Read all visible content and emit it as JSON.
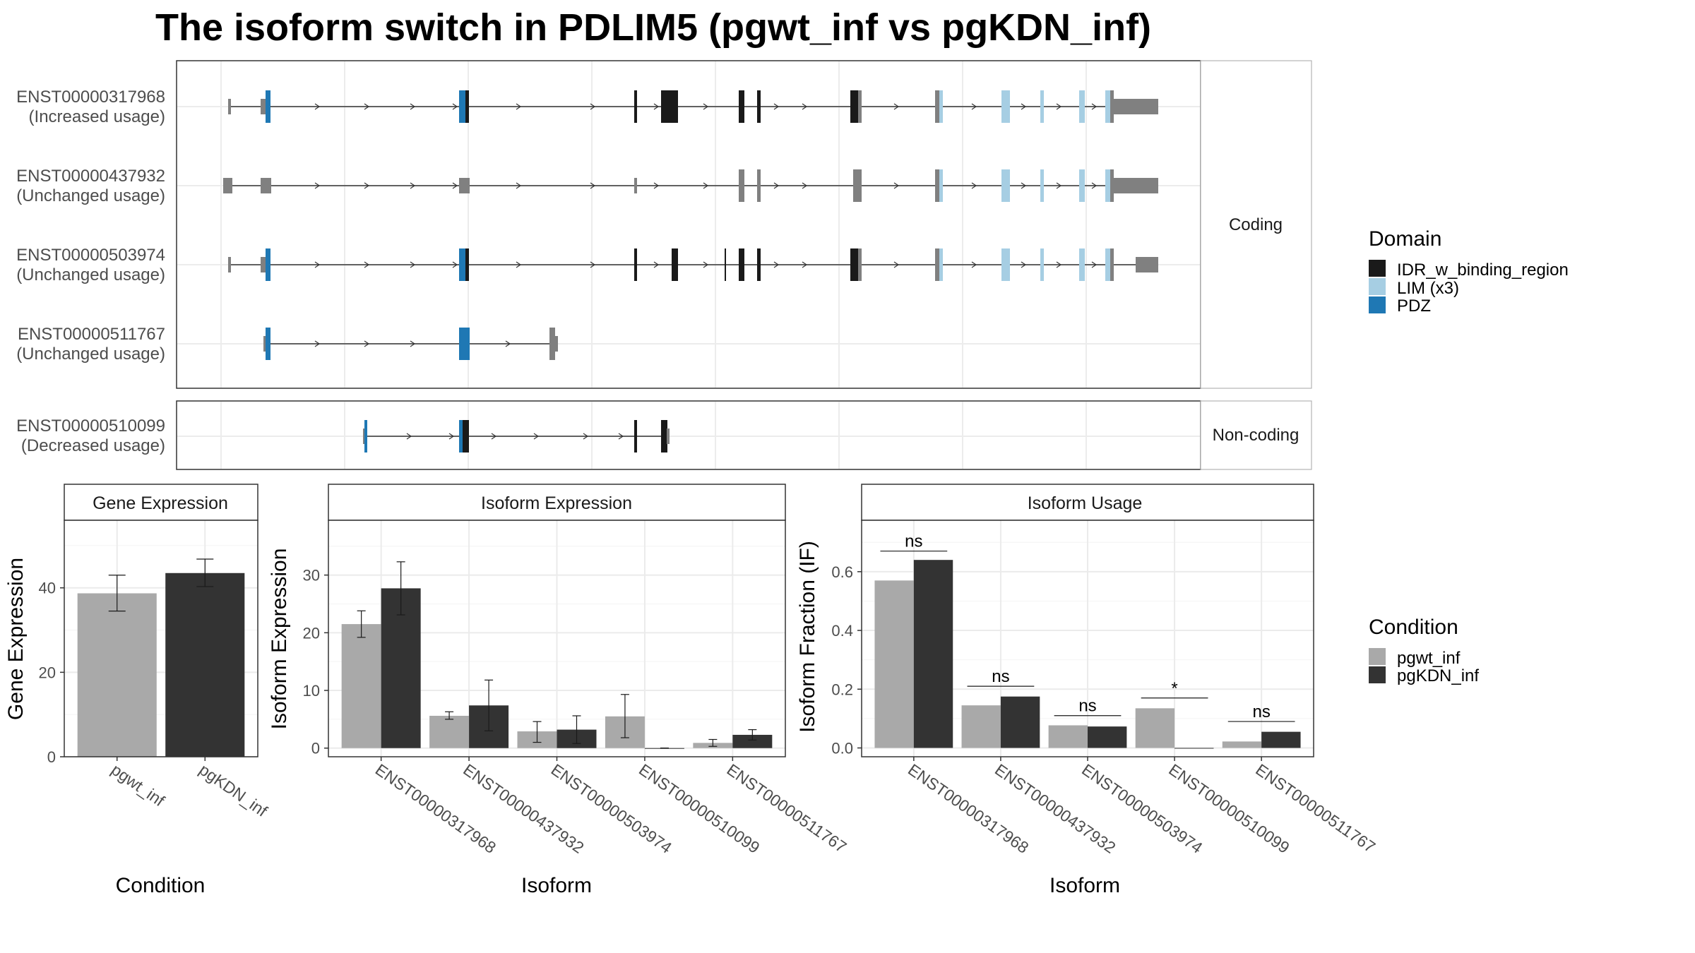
{
  "title": "The isoform switch in PDLIM5 (pgwt_inf vs pgKDN_inf)",
  "colors": {
    "IDR_w_binding_region": "#1a1a1a",
    "LIM (x3)": "#a6cee3",
    "PDZ": "#1f78b4",
    "utr": "#808080",
    "pgwt_inf": "#a9a9a9",
    "pgKDN_inf": "#333333"
  },
  "structure": {
    "facets": [
      {
        "label": "Coding",
        "transcripts": [
          {
            "id": "ENST00000317968",
            "usage": "(Increased usage)"
          },
          {
            "id": "ENST00000437932",
            "usage": "(Unchanged usage)"
          },
          {
            "id": "ENST00000503974",
            "usage": "(Unchanged usage)"
          },
          {
            "id": "ENST00000511767",
            "usage": "(Unchanged usage)"
          }
        ]
      },
      {
        "label": "Non-coding",
        "transcripts": [
          {
            "id": "ENST00000510099",
            "usage": "(Decreased usage)"
          }
        ]
      }
    ]
  },
  "legend_domain": {
    "title": "Domain",
    "items": [
      {
        "label": "IDR_w_binding_region",
        "color": "#1a1a1a"
      },
      {
        "label": "LIM (x3)",
        "color": "#a6cee3"
      },
      {
        "label": "PDZ",
        "color": "#1f78b4"
      }
    ]
  },
  "legend_condition": {
    "title": "Condition",
    "items": [
      {
        "label": "pgwt_inf",
        "color": "#a9a9a9"
      },
      {
        "label": "pgKDN_inf",
        "color": "#333333"
      }
    ]
  },
  "chart_data": [
    {
      "type": "bar",
      "strip": "Gene Expression",
      "xlabel": "Condition",
      "ylabel": "Gene Expression",
      "categories": [
        "pgwt_inf",
        "pgKDN_inf"
      ],
      "values": [
        38.7,
        43.5
      ],
      "errors": [
        [
          34.5,
          43.0
        ],
        [
          40.3,
          46.8
        ]
      ],
      "ylim": [
        0,
        56
      ],
      "yticks": [
        0,
        20,
        40
      ]
    },
    {
      "type": "bar",
      "strip": "Isoform Expression",
      "xlabel": "Isoform",
      "ylabel": "Isoform Expression",
      "categories": [
        "ENST00000317968",
        "ENST00000437932",
        "ENST00000503974",
        "ENST00000510099",
        "ENST00000511767"
      ],
      "series": [
        {
          "name": "pgwt_inf",
          "values": [
            21.5,
            5.6,
            2.9,
            5.5,
            0.9
          ],
          "errors": [
            [
              19.2,
              23.8
            ],
            [
              5.0,
              6.3
            ],
            [
              1.0,
              4.6
            ],
            [
              1.8,
              9.3
            ],
            [
              0.3,
              1.5
            ]
          ]
        },
        {
          "name": "pgKDN_inf",
          "values": [
            27.7,
            7.4,
            3.2,
            0.0,
            2.3
          ],
          "errors": [
            [
              23.1,
              32.3
            ],
            [
              3.0,
              11.8
            ],
            [
              0.8,
              5.6
            ],
            [
              0.0,
              0.0
            ],
            [
              1.4,
              3.2
            ]
          ]
        }
      ],
      "ylim": [
        -1.5,
        39.5
      ],
      "yticks": [
        0,
        10,
        20,
        30
      ]
    },
    {
      "type": "bar",
      "strip": "Isoform Usage",
      "xlabel": "Isoform",
      "ylabel": "Isoform Fraction (IF)",
      "categories": [
        "ENST00000317968",
        "ENST00000437932",
        "ENST00000503974",
        "ENST00000510099",
        "ENST00000511767"
      ],
      "series": [
        {
          "name": "pgwt_inf",
          "values": [
            0.57,
            0.145,
            0.077,
            0.135,
            0.022
          ]
        },
        {
          "name": "pgKDN_inf",
          "values": [
            0.64,
            0.175,
            0.073,
            0.0,
            0.055
          ]
        }
      ],
      "significance": [
        "ns",
        "ns",
        "ns",
        "*",
        "ns"
      ],
      "sig_y": [
        0.67,
        0.21,
        0.11,
        0.17,
        0.09
      ],
      "ylim": [
        -0.03,
        0.775
      ],
      "yticks": [
        0.0,
        0.2,
        0.4,
        0.6
      ],
      "ytick_labels": [
        "0.0",
        "0.2",
        "0.4",
        "0.6"
      ]
    }
  ]
}
